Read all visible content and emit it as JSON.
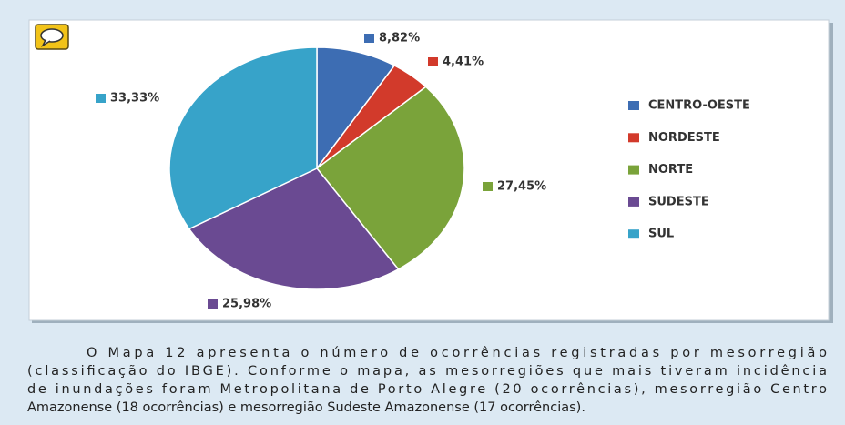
{
  "chart_data": {
    "type": "pie",
    "categories": [
      "CENTRO-OESTE",
      "NORDESTE",
      "NORTE",
      "SUDESTE",
      "SUL"
    ],
    "values": [
      8.82,
      4.41,
      27.45,
      25.98,
      33.33
    ],
    "value_labels": [
      "8,82%",
      "4,41%",
      "27,45%",
      "25,98%",
      "33,33%"
    ],
    "colors": [
      "#3d6db3",
      "#d23a2b",
      "#7aa33a",
      "#6a4a92",
      "#37a3c9"
    ],
    "legend": "right"
  },
  "text": {
    "lines": [
      "O Mapa 12 apresenta o número de ocorrências registradas por mesorregião",
      "(classificação do IBGE). Conforme o mapa, as mesorregiões que mais tiveram incidência",
      "de inundações foram Metropolitana de Porto Alegre (20 ocorrências), mesorregião Centro",
      "Amazonense (18 ocorrências) e mesorregião Sudeste Amazonense (17 ocorrências)."
    ]
  }
}
